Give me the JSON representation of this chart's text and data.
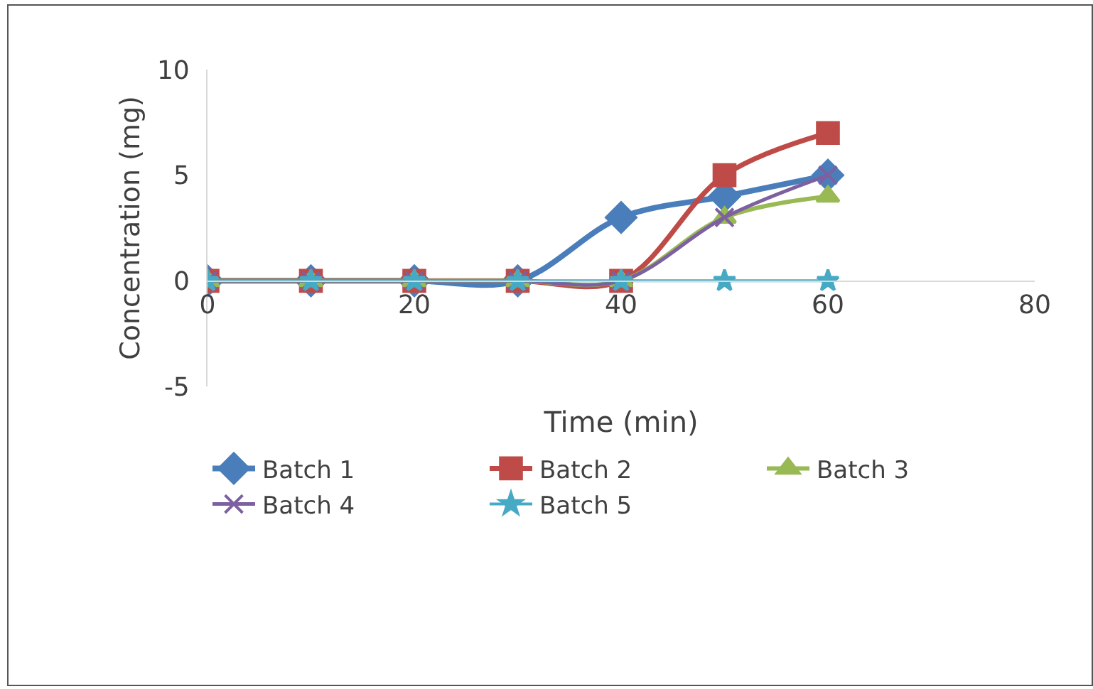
{
  "chart_data": {
    "type": "line",
    "xlabel": "Time (min)",
    "ylabel": "Concentration (mg)",
    "x": [
      0,
      10,
      20,
      30,
      40,
      50,
      60
    ],
    "series": [
      {
        "name": "Batch 1",
        "color": "#4a7ebb",
        "marker": "diamond",
        "values": [
          0,
          0,
          0,
          0,
          3,
          4,
          5
        ]
      },
      {
        "name": "Batch 2",
        "color": "#be4b48",
        "marker": "square",
        "values": [
          0,
          0,
          0,
          0,
          0,
          5,
          7
        ]
      },
      {
        "name": "Batch 3",
        "color": "#98b954",
        "marker": "triangle",
        "values": [
          0,
          0,
          0,
          0,
          0,
          3,
          4
        ]
      },
      {
        "name": "Batch 4",
        "color": "#7d60a0",
        "marker": "cross",
        "values": [
          0,
          0,
          0,
          0,
          0,
          3,
          5
        ]
      },
      {
        "name": "Batch 5",
        "color": "#46aac5",
        "marker": "star",
        "values": [
          0,
          0,
          0,
          0,
          0,
          0,
          0
        ]
      }
    ],
    "xlim": [
      0,
      80
    ],
    "xticks": [
      0,
      20,
      40,
      60,
      80
    ],
    "ylim": [
      -5,
      10
    ],
    "yticks": [
      -5,
      0,
      5,
      10
    ],
    "grid": false,
    "legend": "bottom",
    "line_style": "solid"
  }
}
